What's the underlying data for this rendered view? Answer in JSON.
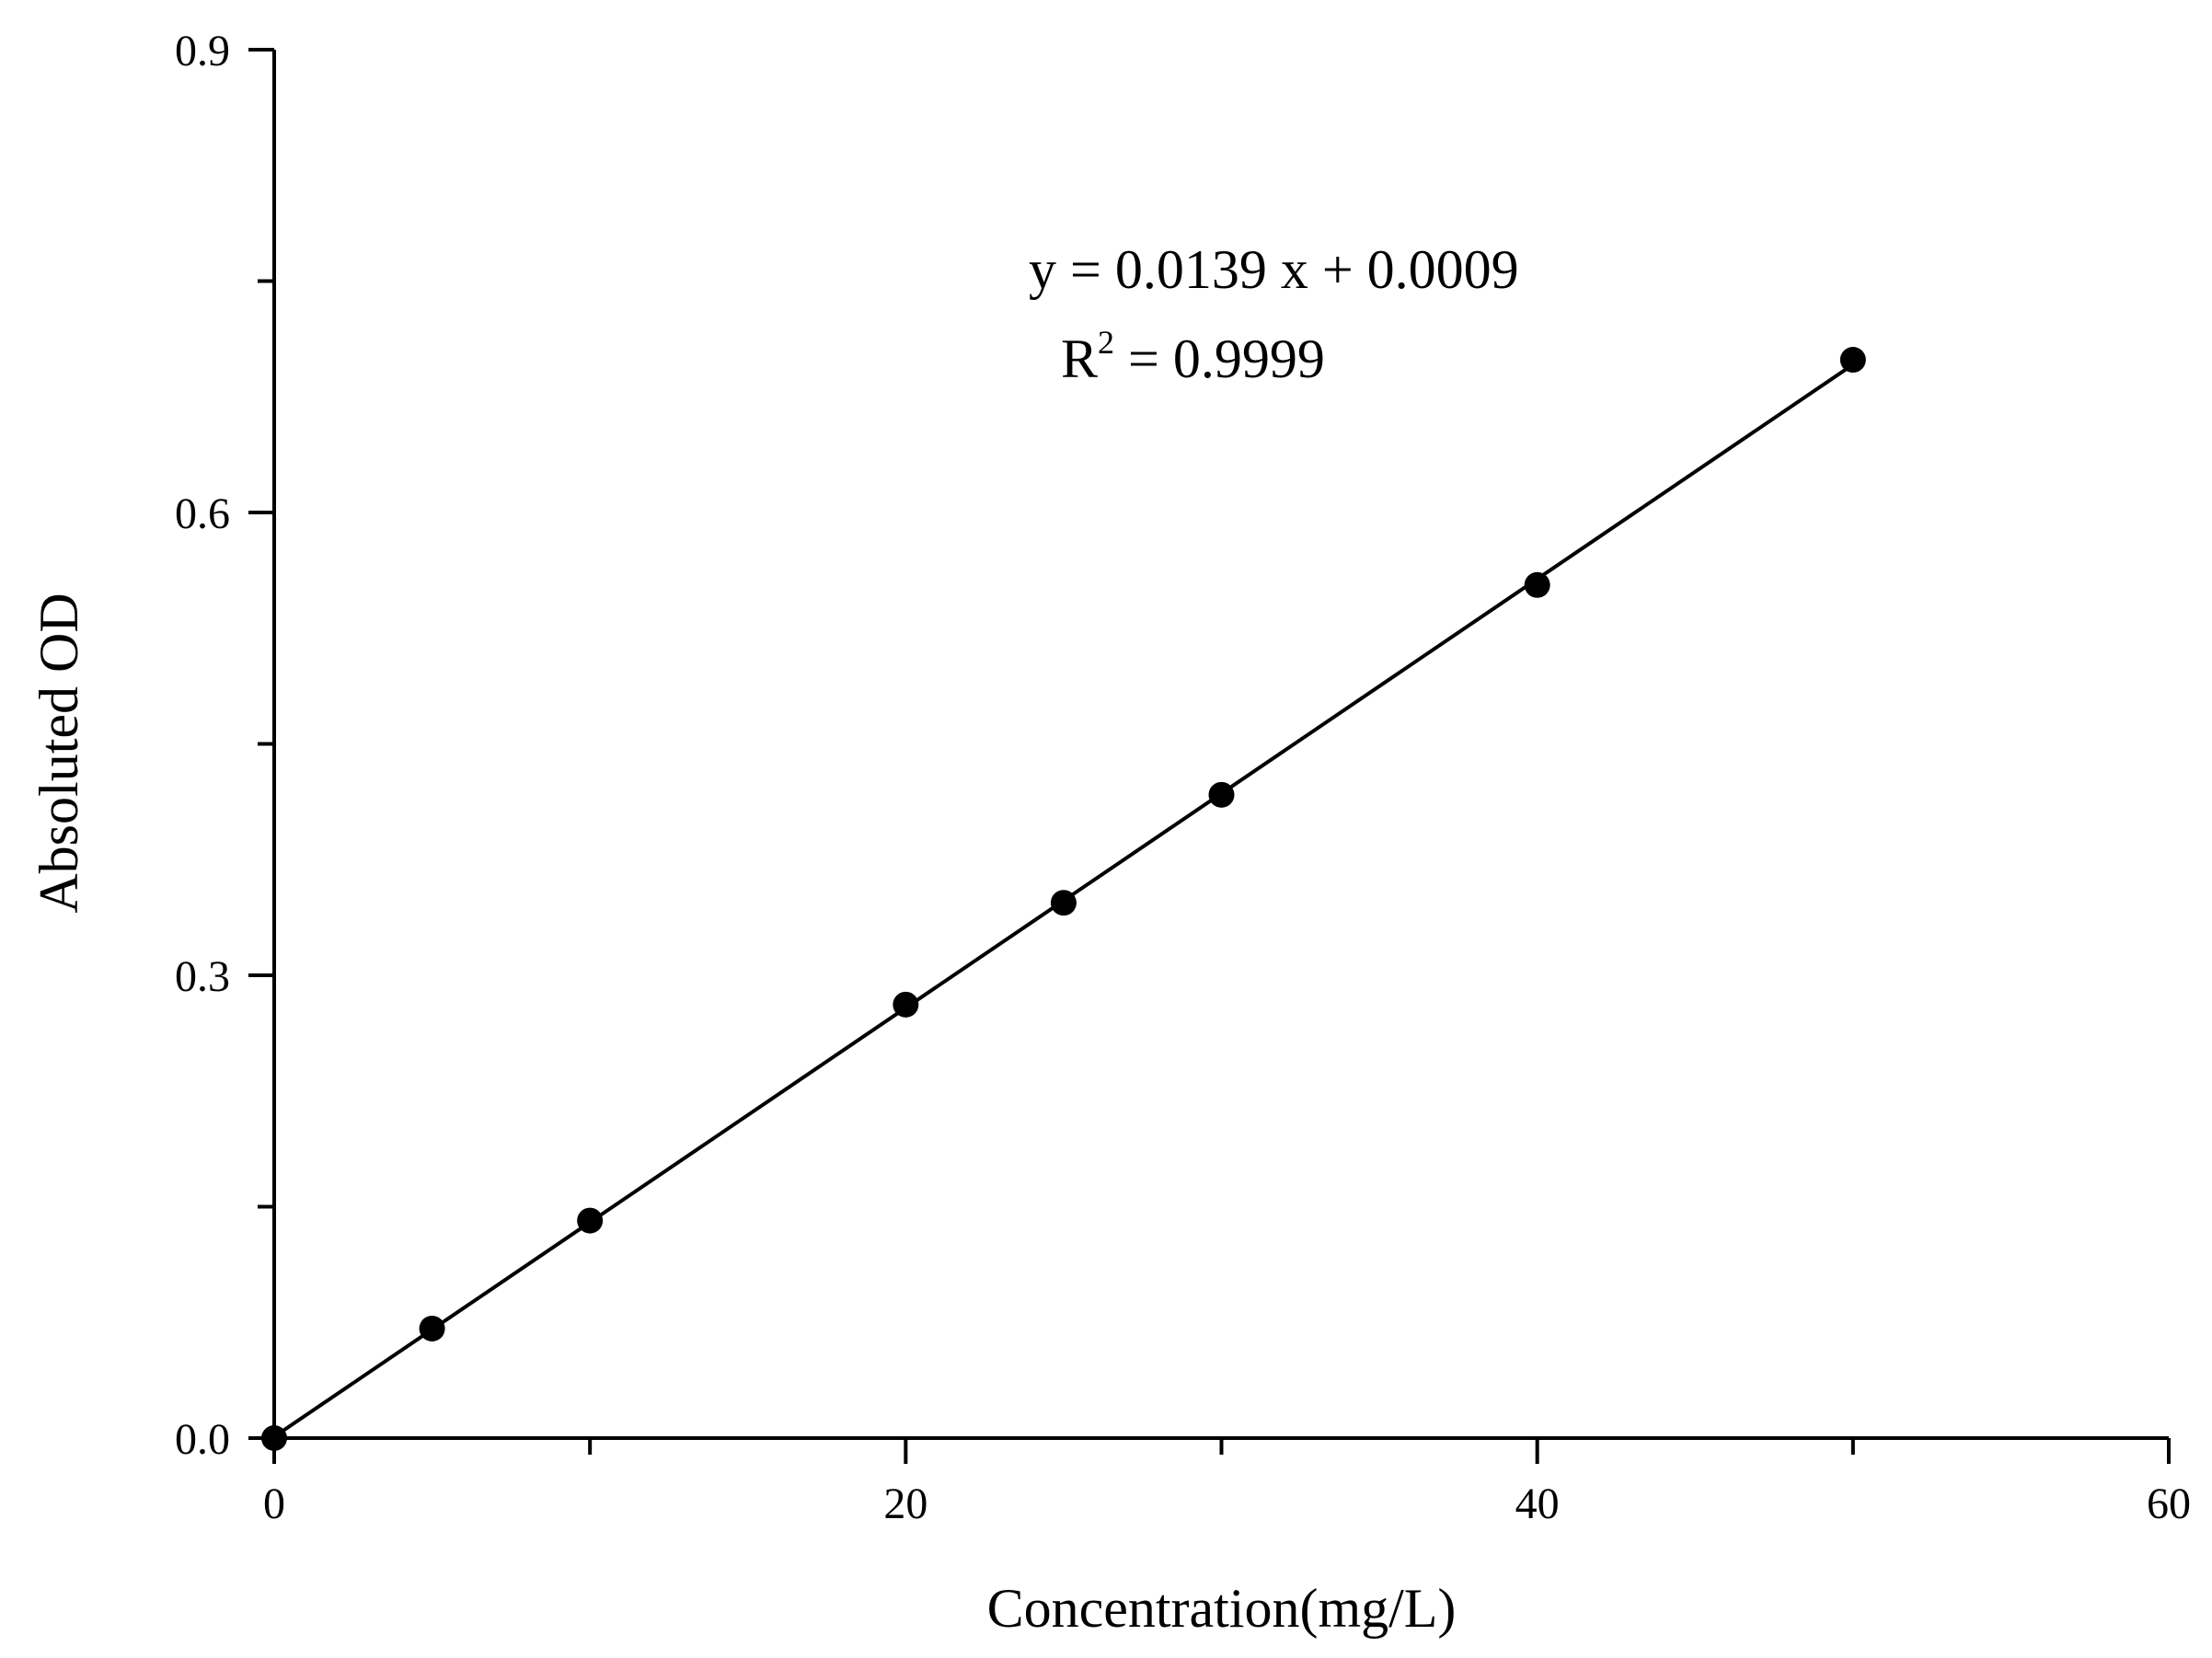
{
  "chart_data": {
    "type": "scatter",
    "title": "",
    "xlabel": "Concentration(mg/L)",
    "ylabel": "Absoluted OD",
    "xlim": [
      0,
      60
    ],
    "ylim": [
      0,
      0.9
    ],
    "x_ticks": [
      0,
      10,
      20,
      30,
      40,
      50,
      60
    ],
    "x_tick_labels": [
      "0",
      "",
      "20",
      "",
      "40",
      "",
      "60"
    ],
    "y_ticks": [
      0,
      0.15,
      0.3,
      0.45,
      0.6,
      0.75,
      0.9
    ],
    "y_tick_labels": [
      "0.0",
      "",
      "0.3",
      "",
      "0.6",
      "",
      "0.9"
    ],
    "grid": false,
    "series": [
      {
        "x": [
          0,
          5,
          10,
          20,
          25,
          30,
          40,
          50
        ],
        "y": [
          0.0,
          0.071,
          0.141,
          0.281,
          0.347,
          0.417,
          0.553,
          0.699
        ],
        "marker": "filled-circle",
        "color": "#000000"
      }
    ],
    "fit_line": {
      "slope": 0.0139,
      "intercept": 0.0009,
      "x_range": [
        0,
        50
      ],
      "color": "#000000"
    },
    "annotations": {
      "equation": "y = 0.0139 x + 0.0009",
      "r2_prefix": "R",
      "r2_superscript": "2",
      "r2_value": " = 0.9999"
    }
  }
}
